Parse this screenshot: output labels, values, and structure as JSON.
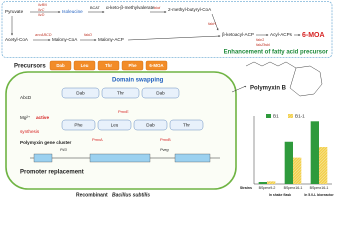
{
  "pathway": {
    "pyruvate": "Pyruvate",
    "ilv_genes": [
      "ilvBN",
      "ilvC",
      "ilvD"
    ],
    "isoleucine": "Isoleucine",
    "bcat": "BCAT",
    "keto": "α-keto-β-methylvalerate",
    "bkd": "bkd",
    "butyryl": "2-methyl-butyryl-CoA",
    "fabH_top": "fabH",
    "ketoacyl": "β-ketoacyl-ACP",
    "fab_genes": [
      "fabG",
      "fabZfabI"
    ],
    "acyl": "Acyl-ACPs",
    "moa": "6-MOA",
    "acetyl": "Acetyl-CoA",
    "acc": "accABCD",
    "malony_coa": "Malony-CoA",
    "fabD": "fabD",
    "malony_acp": "Malony-ACP",
    "caption": "Enhancement of fatty acid precursor"
  },
  "precursors": {
    "label": "Precursors",
    "items": [
      "Dab",
      "Leu",
      "Thr",
      "Phe",
      "6-MOA"
    ]
  },
  "domain_swapping": "Domain swapping",
  "cell": {
    "abc": "AbcD",
    "mg": "Mg²⁺",
    "active": "active",
    "synthesis": "synthesis",
    "row1": [
      "Dab",
      "Thr",
      "Dab"
    ],
    "row2": [
      "Phe",
      "Leu",
      "Dab",
      "Thr"
    ],
    "genes": [
      "PmxE",
      "PmxA",
      "PmxB"
    ],
    "cluster": "Polymyxin gene cluster",
    "promoters": [
      "P43",
      "Pveg"
    ],
    "promoter_replacement": "Promoter replacement",
    "strain_prefix": "Recombinant",
    "strain_name": "Bacillus subtilis"
  },
  "product": "Polymyxin B",
  "chart_data": {
    "type": "bar",
    "categories": [
      "BSpmx9-2",
      "BSpmx16-1",
      "BSpmx16-1"
    ],
    "x_label": "Strains",
    "groups": [
      "In shake flask",
      "In 5.0-L bioreactor"
    ],
    "series": [
      {
        "name": "B1",
        "color": "#2e9a3c",
        "values": [
          30,
          640,
          950
        ]
      },
      {
        "name": "B1-1",
        "color": "#f2cf4a",
        "values": [
          40,
          400,
          560
        ]
      }
    ],
    "ylim": [
      0,
      1000
    ]
  }
}
